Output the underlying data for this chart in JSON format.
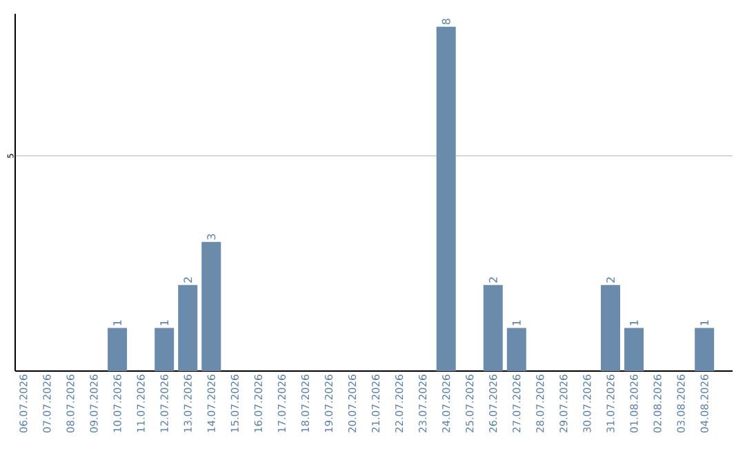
{
  "chart_data": {
    "type": "bar",
    "categories": [
      "06.07.2026",
      "07.07.2026",
      "08.07.2026",
      "09.07.2026",
      "10.07.2026",
      "11.07.2026",
      "12.07.2026",
      "13.07.2026",
      "14.07.2026",
      "15.07.2026",
      "16.07.2026",
      "17.07.2026",
      "18.07.2026",
      "19.07.2026",
      "20.07.2026",
      "21.07.2026",
      "22.07.2026",
      "23.07.2026",
      "24.07.2026",
      "25.07.2026",
      "26.07.2026",
      "27.07.2026",
      "28.07.2026",
      "29.07.2026",
      "30.07.2026",
      "31.07.2026",
      "01.08.2026",
      "02.08.2026",
      "03.08.2026",
      "04.08.2026"
    ],
    "values": [
      0,
      0,
      0,
      0,
      1,
      0,
      1,
      2,
      3,
      0,
      0,
      0,
      0,
      0,
      0,
      0,
      0,
      0,
      8,
      0,
      2,
      1,
      0,
      0,
      0,
      2,
      1,
      0,
      0,
      1
    ],
    "value_labels": [
      null,
      null,
      null,
      null,
      "1",
      null,
      "1",
      "2",
      "3",
      null,
      null,
      null,
      null,
      null,
      null,
      null,
      null,
      null,
      "8",
      null,
      "2",
      "1",
      null,
      null,
      null,
      "2",
      "1",
      null,
      null,
      "1"
    ],
    "color": "#6a8bab",
    "ylim": [
      0,
      8.3
    ],
    "yticks": [
      5
    ],
    "grid": "y"
  }
}
